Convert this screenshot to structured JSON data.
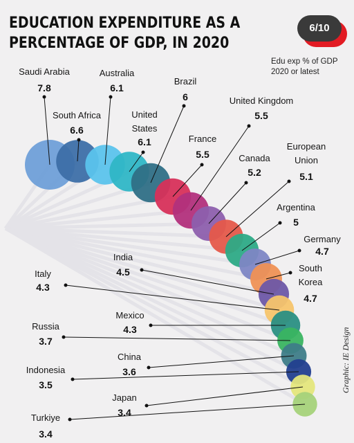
{
  "title": "EDUCATION EXPENDITURE AS A PERCENTAGE OF GDP, IN 2020",
  "subtitle": "Edu exp % of GDP 2020 or latest",
  "counter": "6/10",
  "credit": "Graphic: IE Design",
  "colors": {
    "background": "#f1f0f1",
    "counter_bg": "#3a3a3a",
    "counter_shadow": "#e21b23"
  },
  "chart_data": {
    "type": "bubble",
    "title": "EDUCATION EXPENDITURE AS A PERCENTAGE OF GDP, IN 2020",
    "categories": [
      "Saudi Arabia",
      "South Africa",
      "Australia",
      "United States",
      "Brazil",
      "France",
      "United Kingdom",
      "Canada",
      "European Union",
      "Argentina",
      "Germany",
      "South Korea",
      "India",
      "Italy",
      "Mexico",
      "Russia",
      "China",
      "Indonesia",
      "Japan",
      "Turkiye"
    ],
    "values": [
      7.8,
      6.6,
      6.1,
      6.1,
      6,
      5.5,
      5.5,
      5.2,
      5.1,
      5,
      4.7,
      4.7,
      4.5,
      4.3,
      4.3,
      3.7,
      3.6,
      3.5,
      3.4,
      3.4
    ],
    "labels": [
      {
        "name": "Saudi Arabia",
        "value": "7.8"
      },
      {
        "name": "South Africa",
        "value": "6.6"
      },
      {
        "name": "Australia",
        "value": "6.1"
      },
      {
        "name": "United States",
        "value": "6.1"
      },
      {
        "name": "Brazil",
        "value": "6"
      },
      {
        "name": "France",
        "value": "5.5"
      },
      {
        "name": "United Kingdom",
        "value": "5.5"
      },
      {
        "name": "Canada",
        "value": "5.2"
      },
      {
        "name": "European Union",
        "value": "5.1"
      },
      {
        "name": "Argentina",
        "value": "5"
      },
      {
        "name": "Germany",
        "value": "4.7"
      },
      {
        "name": "South Korea",
        "value": "4.7"
      },
      {
        "name": "India",
        "value": "4.5"
      },
      {
        "name": "Italy",
        "value": "4.3"
      },
      {
        "name": "Mexico",
        "value": "4.3"
      },
      {
        "name": "Russia",
        "value": "3.7"
      },
      {
        "name": "China",
        "value": "3.6"
      },
      {
        "name": "Indonesia",
        "value": "3.5"
      },
      {
        "name": "Japan",
        "value": "3.4"
      },
      {
        "name": "Turkiye",
        "value": "3.4"
      }
    ],
    "colors": [
      "#6f9fd8",
      "#3d6fa8",
      "#5bc3ec",
      "#2fb6c6",
      "#2f6f86",
      "#d7305a",
      "#b2307c",
      "#8d5fad",
      "#e5594a",
      "#2daa86",
      "#7d86c4",
      "#ef9155",
      "#6d57a6",
      "#f6c46b",
      "#2a8f83",
      "#3ab461",
      "#3e7c88",
      "#233f8f",
      "#e4e67c",
      "#a5d27a"
    ]
  }
}
